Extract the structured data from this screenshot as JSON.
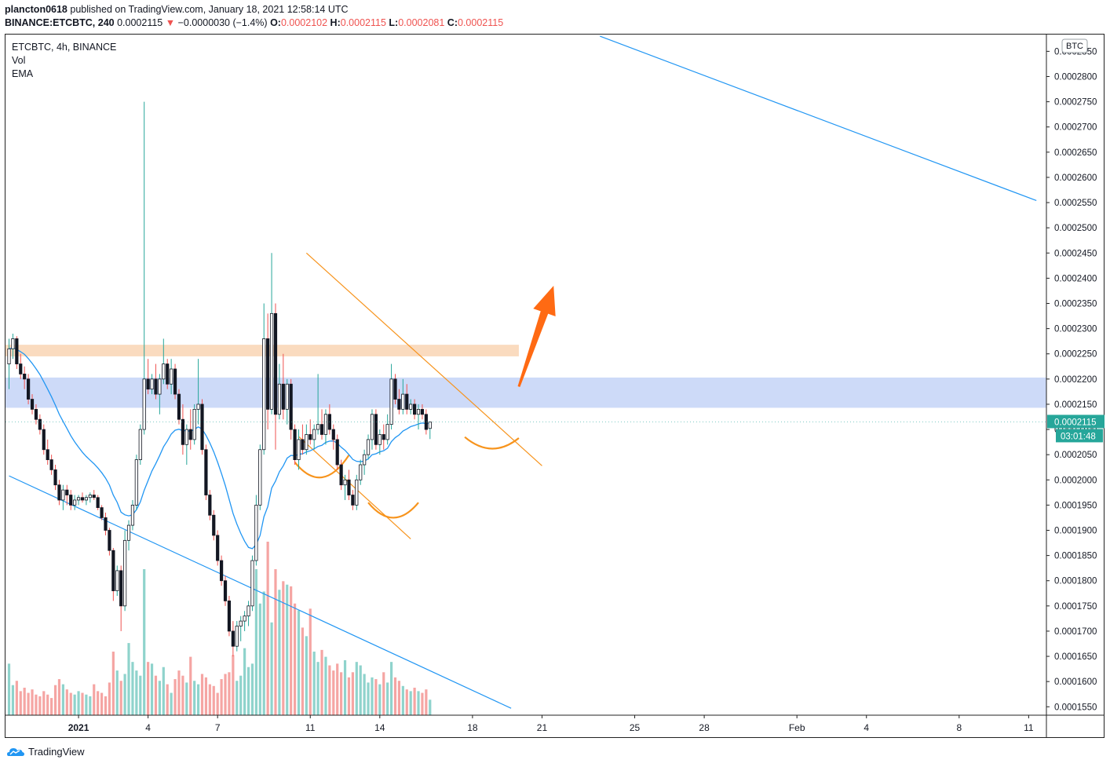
{
  "header": {
    "publisher": "plancton0618",
    "published_text": "published on TradingView.com, January 18, 2021 12:58:14 UTC",
    "symbol_full": "BINANCE:ETCBTC, 240",
    "last": "0.0002115",
    "change_arrow": "▼",
    "change": "−0.0000030 (−1.4%)",
    "o_label": "O:",
    "o_value": "0.0002102",
    "h_label": "H:",
    "h_value": "0.0002115",
    "l_label": "L:",
    "l_value": "0.0002081",
    "c_label": "C:",
    "c_value": "0.0002115"
  },
  "legend": {
    "symbol": "ETCBTC, 4h, BINANCE",
    "vol": "Vol",
    "ema": "EMA"
  },
  "price_axis": {
    "currency": "BTC",
    "current_price": "0.0002115",
    "countdown": "03:01:48"
  },
  "footer": {
    "brand": "TradingView",
    "logo_icon": "tradingview-logo-icon"
  },
  "colors": {
    "up": "#26a69a",
    "down": "#ef5350",
    "ema": "#2196f3",
    "vol_up": "#8fd3cc",
    "vol_down": "#f5a5a3",
    "resistance_zone": "#f9d7b8",
    "support_zone": "#c8d6f7",
    "wedge": "#f7941d",
    "arrow": "#ff6a13",
    "trendline": "#2196f3"
  },
  "chart_data": {
    "type": "candlestick",
    "y_scale": "linear",
    "ylim": [
      0.00015333,
      0.00028833
    ],
    "y_ticks": [
      "0.0002850",
      "0.0002800",
      "0.0002750",
      "0.0002700",
      "0.0002650",
      "0.0002600",
      "0.0002550",
      "0.0002500",
      "0.0002450",
      "0.0002400",
      "0.0002350",
      "0.0002300",
      "0.0002250",
      "0.0002200",
      "0.0002150",
      "0.0002100",
      "0.0002050",
      "0.0002000",
      "0.0001950",
      "0.0001900",
      "0.0001850",
      "0.0001800",
      "0.0001750",
      "0.0001700",
      "0.0001650",
      "0.0001600",
      "0.0001550"
    ],
    "x_ticks": [
      "2021",
      "4",
      "7",
      "11",
      "14",
      "18",
      "21",
      "25",
      "28",
      "Feb",
      "4",
      "8",
      "11"
    ],
    "candle_interval": "4h",
    "first_candle": "2020-12-29T00:00Z",
    "zones": [
      {
        "name": "resistance",
        "from": 0.0002245,
        "to": 0.0002268,
        "end": "2021-01-20T00:00Z"
      },
      {
        "name": "support",
        "from": 0.0002143,
        "to": 0.0002203
      }
    ],
    "trendlines": [
      {
        "name": "upper-long",
        "points": [
          [
            "2021-01-23T12:00Z",
            0.000288
          ],
          [
            "2021-02-11T08:00Z",
            0.0002554
          ]
        ]
      },
      {
        "name": "lower-long",
        "points": [
          [
            "2020-12-29T00:00Z",
            0.0002008
          ],
          [
            "2021-01-19T16:00Z",
            0.0001547
          ]
        ]
      },
      {
        "name": "wedge-upper",
        "points": [
          [
            "2021-01-10T20:00Z",
            0.000245
          ],
          [
            "2021-01-21T00:00Z",
            0.0002028
          ]
        ]
      },
      {
        "name": "wedge-lower",
        "points": [
          [
            "2021-01-10T12:00Z",
            0.0002086
          ],
          [
            "2021-01-15T08:00Z",
            0.0001883
          ]
        ]
      }
    ],
    "arcs": [
      {
        "name": "arc-left",
        "from": [
          "2021-01-10T08:00Z",
          0.0002035
        ],
        "to": [
          "2021-01-12T16:00Z",
          0.0002049
        ],
        "low": 0.0002005
      },
      {
        "name": "arc-middle",
        "from": [
          "2021-01-13T12:00Z",
          0.0001955
        ],
        "to": [
          "2021-01-15T16:00Z",
          0.0001955
        ],
        "low": 0.0001925
      },
      {
        "name": "arc-right",
        "from": [
          "2021-01-17T16:00Z",
          0.0002085
        ],
        "to": [
          "2021-01-20T00:00Z",
          0.0002083
        ],
        "low": 0.0002062
      }
    ],
    "arrow": {
      "from": [
        "2021-01-20T00:00Z",
        0.0002185
      ],
      "to": [
        "2021-01-21T12:00Z",
        0.0002385
      ]
    },
    "candles": [
      [
        0.000223,
        0.000228,
        0.000218,
        0.000226
      ],
      [
        0.000226,
        0.000229,
        0.000224,
        0.000228
      ],
      [
        0.000228,
        0.0002285,
        0.000222,
        0.000223
      ],
      [
        0.000223,
        0.000225,
        0.00022,
        0.000221
      ],
      [
        0.000221,
        0.0002225,
        0.000218,
        0.00022
      ],
      [
        0.00022,
        0.000221,
        0.000215,
        0.000216
      ],
      [
        0.000216,
        0.000217,
        0.000213,
        0.000214
      ],
      [
        0.000214,
        0.000215,
        0.000211,
        0.000212
      ],
      [
        0.000212,
        0.000213,
        0.000209,
        0.00021
      ],
      [
        0.00021,
        0.000211,
        0.000205,
        0.000206
      ],
      [
        0.000206,
        0.000208,
        0.000203,
        0.000204
      ],
      [
        0.000204,
        0.000205,
        0.000201,
        0.000202
      ],
      [
        0.000202,
        0.000203,
        0.000198,
        0.000199
      ],
      [
        0.000199,
        0.0002,
        0.000195,
        0.000196
      ],
      [
        0.000196,
        0.000199,
        0.000194,
        0.000198
      ],
      [
        0.000198,
        0.000199,
        0.000195,
        0.000197
      ],
      [
        0.000197,
        0.000198,
        0.000194,
        0.000195
      ],
      [
        0.000195,
        0.000197,
        0.000194,
        0.000196
      ],
      [
        0.000196,
        0.000197,
        0.000195,
        0.0001965
      ],
      [
        0.0001965,
        0.0001975,
        0.0001955,
        0.000196
      ],
      [
        0.000196,
        0.000197,
        0.000195,
        0.0001965
      ],
      [
        0.0001965,
        0.0001975,
        0.0001955,
        0.000197
      ],
      [
        0.000197,
        0.000198,
        0.000196,
        0.0001965
      ],
      [
        0.0001965,
        0.000197,
        0.000194,
        0.0001945
      ],
      [
        0.0001945,
        0.000195,
        0.000192,
        0.0001925
      ],
      [
        0.0001925,
        0.0001935,
        0.000189,
        0.00019
      ],
      [
        0.00019,
        0.0001905,
        0.000185,
        0.000186
      ],
      [
        0.000186,
        0.0001865,
        0.000176,
        0.000178
      ],
      [
        0.000178,
        0.000183,
        0.000177,
        0.000182
      ],
      [
        0.000182,
        0.000183,
        0.00017,
        0.000175
      ],
      [
        0.000175,
        0.00019,
        0.000174,
        0.000188
      ],
      [
        0.000188,
        0.000192,
        0.000186,
        0.000191
      ],
      [
        0.000191,
        0.000196,
        0.00019,
        0.000195
      ],
      [
        0.000195,
        0.000205,
        0.000194,
        0.000204
      ],
      [
        0.000204,
        0.000211,
        0.000203,
        0.00021
      ],
      [
        0.00021,
        0.000275,
        0.000209,
        0.00022
      ],
      [
        0.00022,
        0.000224,
        0.000217,
        0.000218
      ],
      [
        0.000218,
        0.000221,
        0.000217,
        0.00022
      ],
      [
        0.00022,
        0.000223,
        0.000216,
        0.000217
      ],
      [
        0.000217,
        0.000221,
        0.000213,
        0.00022
      ],
      [
        0.00022,
        0.000228,
        0.000219,
        0.000223
      ],
      [
        0.000223,
        0.000224,
        0.000218,
        0.000219
      ],
      [
        0.000219,
        0.000224,
        0.000217,
        0.000222
      ],
      [
        0.000222,
        0.000223,
        0.000216,
        0.000217
      ],
      [
        0.000217,
        0.000218,
        0.000211,
        0.000212
      ],
      [
        0.000212,
        0.000215,
        0.000205,
        0.000207
      ],
      [
        0.000207,
        0.000211,
        0.000203,
        0.00021
      ],
      [
        0.00021,
        0.000214,
        0.000206,
        0.000208
      ],
      [
        0.000208,
        0.000215,
        0.000207,
        0.000214
      ],
      [
        0.000214,
        0.000224,
        0.000211,
        0.000215
      ],
      [
        0.000215,
        0.000216,
        0.000205,
        0.000206
      ],
      [
        0.000206,
        0.000207,
        0.000196,
        0.000197
      ],
      [
        0.000197,
        0.000198,
        0.000192,
        0.000193
      ],
      [
        0.000193,
        0.000194,
        0.000188,
        0.000189
      ],
      [
        0.000189,
        0.00019,
        0.000183,
        0.000184
      ],
      [
        0.000184,
        0.000185,
        0.000179,
        0.00018
      ],
      [
        0.00018,
        0.000181,
        0.000175,
        0.000176
      ],
      [
        0.000176,
        0.000177,
        0.000169,
        0.00017
      ],
      [
        0.00017,
        0.000172,
        0.000165,
        0.000167
      ],
      [
        0.000167,
        0.000172,
        0.000166,
        0.000171
      ],
      [
        0.000171,
        0.000173,
        0.000168,
        0.000172
      ],
      [
        0.000172,
        0.000174,
        0.00017,
        0.000173
      ],
      [
        0.000173,
        0.000176,
        0.000171,
        0.000175
      ],
      [
        0.000175,
        0.000185,
        0.000174,
        0.000184
      ],
      [
        0.000184,
        0.000197,
        0.000183,
        0.000195
      ],
      [
        0.000195,
        0.000207,
        0.000194,
        0.000206
      ],
      [
        0.000206,
        0.000235,
        0.000205,
        0.000228
      ],
      [
        0.000228,
        0.000233,
        0.00021,
        0.000214
      ],
      [
        0.000214,
        0.000245,
        0.000213,
        0.000233
      ],
      [
        0.000233,
        0.000235,
        0.000206,
        0.000213
      ],
      [
        0.000213,
        0.000223,
        0.000212,
        0.000219
      ],
      [
        0.000219,
        0.000225,
        0.000212,
        0.000214
      ],
      [
        0.000214,
        0.00022,
        0.000211,
        0.000219
      ],
      [
        0.000219,
        0.00022,
        0.000208,
        0.00021
      ],
      [
        0.00021,
        0.000211,
        0.000203,
        0.000204
      ],
      [
        0.000204,
        0.00021,
        0.000202,
        0.000208
      ],
      [
        0.000208,
        0.000211,
        0.000205,
        0.000206
      ],
      [
        0.000206,
        0.000211,
        0.000205,
        0.000209
      ],
      [
        0.000209,
        0.000212,
        0.000207,
        0.000208
      ],
      [
        0.000208,
        0.000211,
        0.000206,
        0.00021
      ],
      [
        0.00021,
        0.000221,
        0.000209,
        0.000211
      ],
      [
        0.000211,
        0.000214,
        0.000208,
        0.000209
      ],
      [
        0.000209,
        0.000214,
        0.000207,
        0.000213
      ],
      [
        0.000213,
        0.000215,
        0.000209,
        0.00021
      ],
      [
        0.00021,
        0.000211,
        0.000206,
        0.000208
      ],
      [
        0.000208,
        0.000209,
        0.000202,
        0.000203
      ],
      [
        0.000203,
        0.000204,
        0.000198,
        0.000199
      ],
      [
        0.000199,
        0.000201,
        0.000196,
        0.0002
      ],
      [
        0.0002,
        0.000202,
        0.000196,
        0.000197
      ],
      [
        0.000197,
        0.000198,
        0.000194,
        0.000195
      ],
      [
        0.000195,
        0.000201,
        0.000194,
        0.0002
      ],
      [
        0.0002,
        0.000204,
        0.000199,
        0.000203
      ],
      [
        0.000203,
        0.000206,
        0.000201,
        0.000205
      ],
      [
        0.000205,
        0.000209,
        0.000204,
        0.000208
      ],
      [
        0.000208,
        0.000214,
        0.000206,
        0.000213
      ],
      [
        0.000213,
        0.000214,
        0.000206,
        0.000207
      ],
      [
        0.000207,
        0.00021,
        0.000205,
        0.000209
      ],
      [
        0.000209,
        0.000211,
        0.000206,
        0.000208
      ],
      [
        0.000208,
        0.000213,
        0.000207,
        0.000211
      ],
      [
        0.000211,
        0.000223,
        0.00021,
        0.00022
      ],
      [
        0.00022,
        0.000221,
        0.000215,
        0.000216
      ],
      [
        0.000216,
        0.000218,
        0.000213,
        0.000214
      ],
      [
        0.000214,
        0.00022,
        0.000213,
        0.000217
      ],
      [
        0.000217,
        0.000219,
        0.000213,
        0.000214
      ],
      [
        0.000214,
        0.000216,
        0.000213,
        0.000215
      ],
      [
        0.000215,
        0.000216,
        0.000212,
        0.000213
      ],
      [
        0.000213,
        0.000215,
        0.00021,
        0.000214
      ],
      [
        0.000214,
        0.000215,
        0.000212,
        0.000213
      ],
      [
        0.000213,
        0.000214,
        0.000209,
        0.00021
      ],
      [
        0.0002102,
        0.0002115,
        0.0002081,
        0.0002115
      ]
    ],
    "volumes": [
      6e-06,
      3.5e-06,
      4e-06,
      2.8e-06,
      3.2e-06,
      2.6e-06,
      3e-06,
      2.4e-06,
      2.2e-06,
      2.8e-06,
      2.4e-06,
      2e-06,
      3.5e-06,
      4.2e-06,
      3.6e-06,
      3e-06,
      2.6e-06,
      2.4e-06,
      2.8e-06,
      2.6e-06,
      2.4e-06,
      2.2e-06,
      3.6e-06,
      2.8e-06,
      2.6e-06,
      2.2e-06,
      3.8e-06,
      7.4e-06,
      5.2e-06,
      4e-06,
      4.8e-06,
      8.4e-06,
      6.2e-06,
      5.2e-06,
      4.6e-06,
      1.7e-05,
      6.2e-06,
      6e-06,
      4.6e-06,
      4e-06,
      5.6e-06,
      3.6e-06,
      2.6e-06,
      4.2e-06,
      5.2e-06,
      4.6e-06,
      3.8e-06,
      6.8e-06,
      4e-06,
      3.6e-06,
      4.8e-06,
      4.4e-06,
      3.6e-06,
      3.4e-06,
      2.6e-06,
      4.2e-06,
      4.8e-06,
      5e-06,
      7e-06,
      4e-06,
      4.6e-06,
      7.8e-06,
      5.6e-06,
      6e-06,
      1.7e-05,
      1.3e-05,
      1.44e-05,
      2.02e-05,
      1.08e-05,
      1.7e-05,
      1.46e-05,
      1.56e-05,
      1.52e-05,
      1.5e-05,
      1.3e-05,
      1.22e-05,
      1.02e-05,
      9.2e-06,
      1.24e-05,
      7.4e-06,
      6.2e-06,
      7.6e-06,
      6.8e-06,
      5.8e-06,
      5.2e-06,
      6e-06,
      5e-06,
      6.4e-06,
      4.4e-06,
      5e-06,
      6.2e-06,
      5.8e-06,
      4.8e-06,
      3.8e-06,
      4.4e-06,
      4.2e-06,
      3.6e-06,
      5e-06,
      3.8e-06,
      6.2e-06,
      4.4e-06,
      4e-06,
      3.4e-06,
      3e-06,
      2.8e-06,
      3.2e-06,
      2.8e-06,
      2.6e-06,
      3e-06,
      1.8e-06
    ],
    "ema": {
      "name": "EMA",
      "period": 20
    }
  }
}
